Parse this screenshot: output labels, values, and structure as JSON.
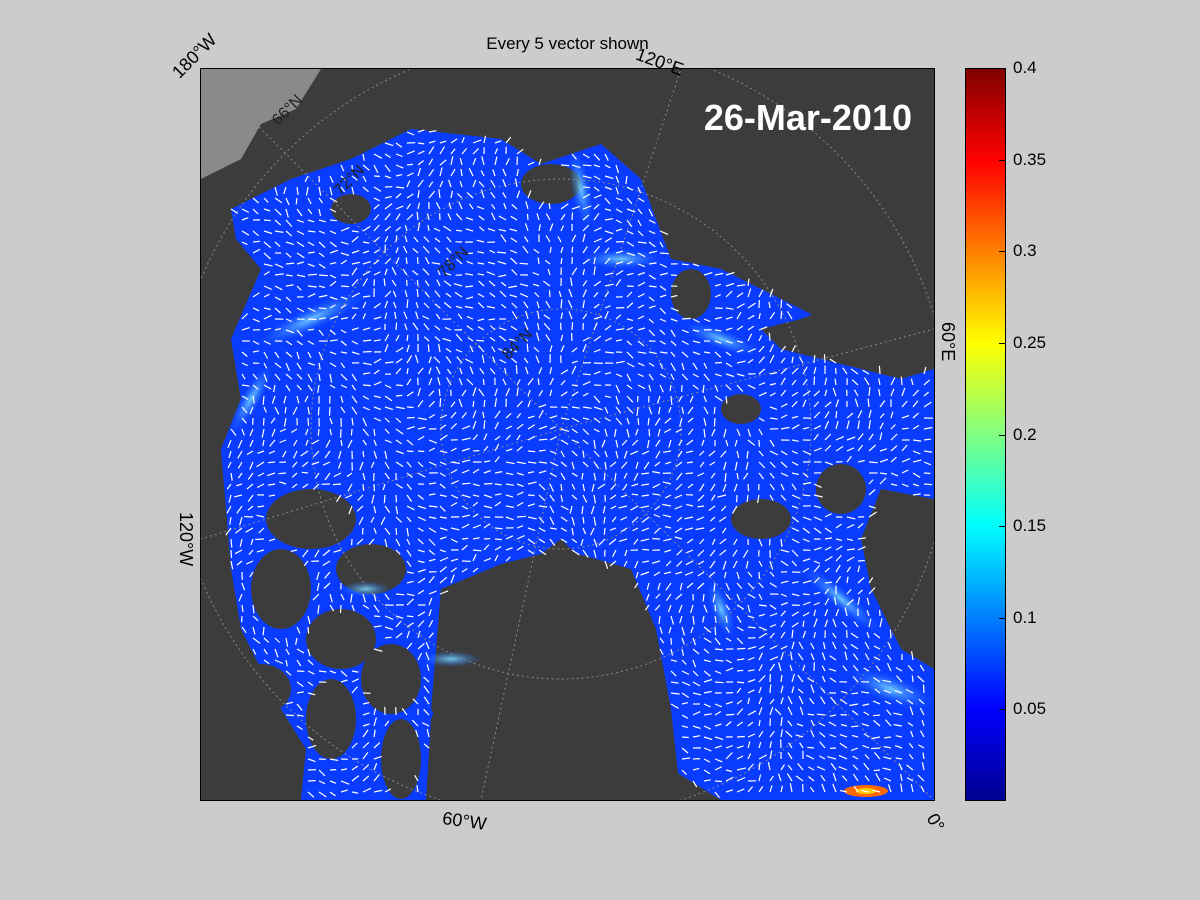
{
  "title": "Every 5 vector shown",
  "date": "26-Mar-2010",
  "edge_labels": {
    "top_left": "180°W",
    "top_right": "120°E",
    "right": "60°E",
    "bottom_right": "0°",
    "bottom": "60°W",
    "left": "120°W"
  },
  "latitude_labels": [
    "66°N",
    "72°N",
    "78°N",
    "84°N"
  ],
  "colorbar": {
    "min": 0,
    "max": 0.4,
    "ticks": [
      "0.4",
      "0.35",
      "0.3",
      "0.25",
      "0.2",
      "0.15",
      "0.1",
      "0.05"
    ],
    "tick_values": [
      0.4,
      0.35,
      0.3,
      0.25,
      0.2,
      0.15,
      0.1,
      0.05
    ],
    "colormap": "jet"
  },
  "colors": {
    "background": "#cccccc",
    "land": "#3c3c3c",
    "ocean_base": "#0a3cff",
    "vectors": "#ffffff"
  }
}
